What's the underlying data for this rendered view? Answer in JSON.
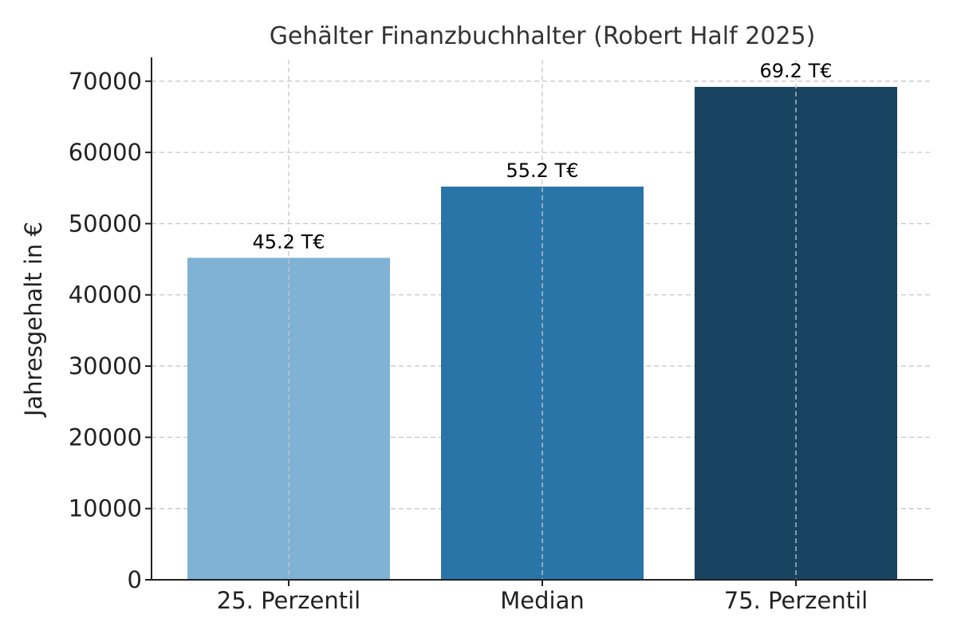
{
  "chart_data": {
    "type": "bar",
    "title": "Gehälter Finanzbuchhalter (Robert Half 2025)",
    "xlabel": "",
    "ylabel": "Jahresgehalt in €",
    "categories": [
      "25. Perzentil",
      "Median",
      "75. Perzentil"
    ],
    "values": [
      45200,
      55200,
      69200
    ],
    "data_labels": [
      "45.2 T€",
      "55.2 T€",
      "69.2 T€"
    ],
    "colors": [
      "#7fb2d5",
      "#2a75a8",
      "#184461"
    ],
    "ylim": [
      0,
      73000
    ],
    "yticks": [
      0,
      10000,
      20000,
      30000,
      40000,
      50000,
      60000,
      70000
    ],
    "ytick_labels": [
      "0",
      "10000",
      "20000",
      "30000",
      "40000",
      "50000",
      "60000",
      "70000"
    ],
    "grid": true,
    "grid_color": "#c8c8c8"
  }
}
